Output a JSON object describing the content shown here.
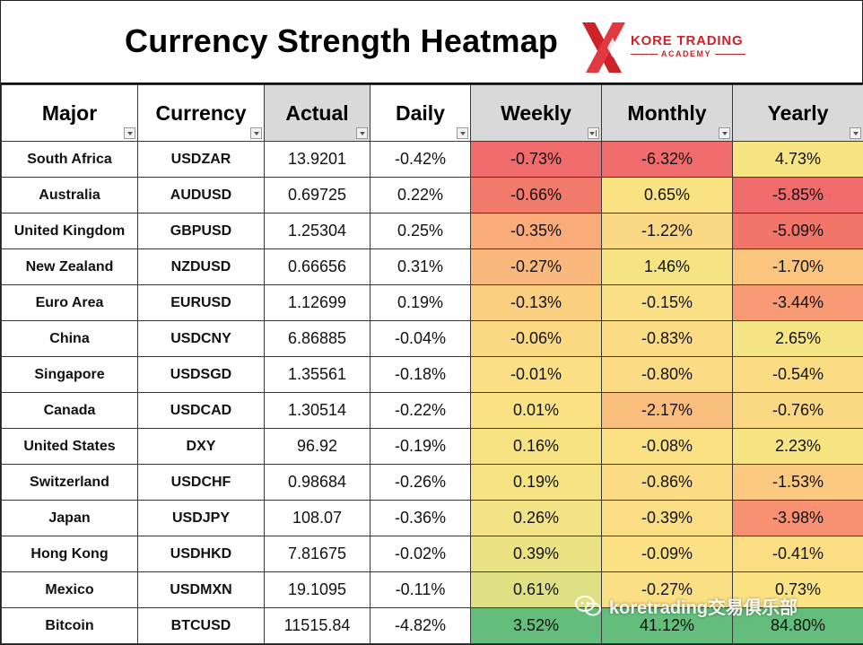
{
  "title": "Currency Strength Heatmap",
  "logo": {
    "brand": "KORE TRADING",
    "sub": "ACADEMY",
    "color": "#cc2229"
  },
  "headers": [
    "Major",
    "Currency",
    "Actual",
    "Daily",
    "Weekly",
    "Monthly",
    "Yearly"
  ],
  "rows": [
    {
      "major": "South Africa",
      "currency": "USDZAR",
      "actual": "13.9201",
      "daily": "-0.42%",
      "weekly": "-0.73%",
      "monthly": "-6.32%",
      "yearly": "4.73%",
      "colors": {
        "weekly": "#f06b6b",
        "monthly": "#f06b6b",
        "yearly": "#f7e482"
      }
    },
    {
      "major": "Australia",
      "currency": "AUDUSD",
      "actual": "0.69725",
      "daily": "0.22%",
      "weekly": "-0.66%",
      "monthly": "0.65%",
      "yearly": "-5.85%",
      "colors": {
        "weekly": "#f27a6b",
        "monthly": "#fae282",
        "yearly": "#f06b6b"
      }
    },
    {
      "major": "United Kingdom",
      "currency": "GBPUSD",
      "actual": "1.25304",
      "daily": "0.25%",
      "weekly": "-0.35%",
      "monthly": "-1.22%",
      "yearly": "-5.09%",
      "colors": {
        "weekly": "#f9ac7a",
        "monthly": "#fad883",
        "yearly": "#f17569"
      }
    },
    {
      "major": "New Zealand",
      "currency": "NZDUSD",
      "actual": "0.66656",
      "daily": "0.31%",
      "weekly": "-0.27%",
      "monthly": "1.46%",
      "yearly": "-1.70%",
      "colors": {
        "weekly": "#fab97c",
        "monthly": "#f4e484",
        "yearly": "#fbc57e"
      }
    },
    {
      "major": "Euro Area",
      "currency": "EURUSD",
      "actual": "1.12699",
      "daily": "0.19%",
      "weekly": "-0.13%",
      "monthly": "-0.15%",
      "yearly": "-3.44%",
      "colors": {
        "weekly": "#fbcf80",
        "monthly": "#fbdf84",
        "yearly": "#f89b74"
      }
    },
    {
      "major": "China",
      "currency": "USDCNY",
      "actual": "6.86885",
      "daily": "-0.04%",
      "weekly": "-0.06%",
      "monthly": "-0.83%",
      "yearly": "2.65%",
      "colors": {
        "weekly": "#fbd983",
        "monthly": "#fbdb83",
        "yearly": "#f5e585"
      }
    },
    {
      "major": "Singapore",
      "currency": "USDSGD",
      "actual": "1.35561",
      "daily": "-0.18%",
      "weekly": "-0.01%",
      "monthly": "-0.80%",
      "yearly": "-0.54%",
      "colors": {
        "weekly": "#fbdf84",
        "monthly": "#fbdb83",
        "yearly": "#fbdc83"
      }
    },
    {
      "major": "Canada",
      "currency": "USDCAD",
      "actual": "1.30514",
      "daily": "-0.22%",
      "weekly": "0.01%",
      "monthly": "-2.17%",
      "yearly": "-0.76%",
      "colors": {
        "weekly": "#fbe284",
        "monthly": "#f9bd7d",
        "yearly": "#fbd983"
      }
    },
    {
      "major": "United States",
      "currency": "DXY",
      "actual": "96.92",
      "daily": "-0.19%",
      "weekly": "0.16%",
      "monthly": "-0.08%",
      "yearly": "2.23%",
      "colors": {
        "weekly": "#f8e383",
        "monthly": "#fbe084",
        "yearly": "#f7e584"
      }
    },
    {
      "major": "Switzerland",
      "currency": "USDCHF",
      "actual": "0.98684",
      "daily": "-0.26%",
      "weekly": "0.19%",
      "monthly": "-0.86%",
      "yearly": "-1.53%",
      "colors": {
        "weekly": "#f6e383",
        "monthly": "#fbdb83",
        "yearly": "#fbca80"
      }
    },
    {
      "major": "Japan",
      "currency": "USDJPY",
      "actual": "108.07",
      "daily": "-0.36%",
      "weekly": "0.26%",
      "monthly": "-0.39%",
      "yearly": "-3.98%",
      "colors": {
        "weekly": "#f2e384",
        "monthly": "#fbde84",
        "yearly": "#f79172"
      }
    },
    {
      "major": "Hong Kong",
      "currency": "USDHKD",
      "actual": "7.81675",
      "daily": "-0.02%",
      "weekly": "0.39%",
      "monthly": "-0.09%",
      "yearly": "-0.41%",
      "colors": {
        "weekly": "#eae283",
        "monthly": "#fbe084",
        "yearly": "#fbdd84"
      }
    },
    {
      "major": "Mexico",
      "currency": "USDMXN",
      "actual": "19.1095",
      "daily": "-0.11%",
      "weekly": "0.61%",
      "monthly": "-0.27%",
      "yearly": "0.73%",
      "colors": {
        "weekly": "#dfe083",
        "monthly": "#fbdf84",
        "yearly": "#fbe384"
      }
    },
    {
      "major": "Bitcoin",
      "currency": "BTCUSD",
      "actual": "11515.84",
      "daily": "-4.82%",
      "weekly": "3.52%",
      "monthly": "41.12%",
      "yearly": "84.80%",
      "colors": {
        "weekly": "#63be7b",
        "monthly": "#63be7b",
        "yearly": "#63be7b"
      }
    }
  ],
  "watermark": {
    "text": "koretrading交易俱乐部",
    "icon": "wechat-icon"
  }
}
